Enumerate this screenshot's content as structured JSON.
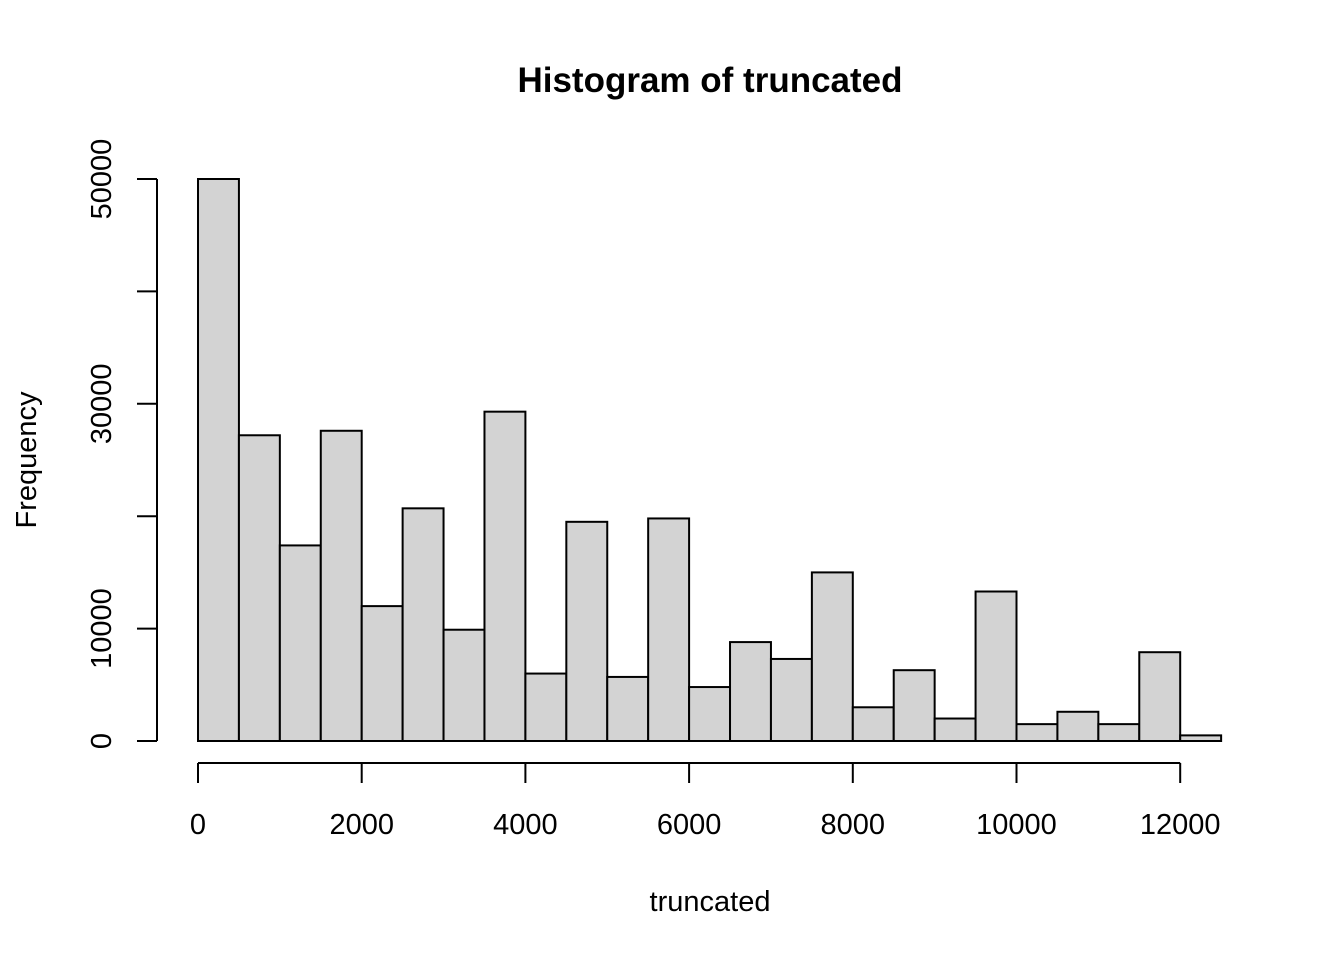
{
  "chart_data": {
    "type": "bar",
    "title": "Histogram of truncated",
    "xlabel": "truncated",
    "ylabel": "Frequency",
    "bin_width": 500,
    "bin_starts": [
      0,
      500,
      1000,
      1500,
      2000,
      2500,
      3000,
      3500,
      4000,
      4500,
      5000,
      5500,
      6000,
      6500,
      7000,
      7500,
      8000,
      8500,
      9000,
      9500,
      10000,
      10500,
      11000,
      11500,
      12000
    ],
    "values": [
      50000,
      27200,
      17400,
      27600,
      12000,
      20700,
      9900,
      29300,
      6000,
      19500,
      5700,
      19800,
      4800,
      8800,
      7300,
      15000,
      3000,
      6300,
      2000,
      13300,
      1500,
      2600,
      1500,
      7900,
      500
    ],
    "xlim": [
      0,
      12500
    ],
    "ylim": [
      0,
      50000
    ],
    "x_ticks": [
      0,
      2000,
      4000,
      6000,
      8000,
      10000,
      12000
    ],
    "x_tick_labels": [
      "0",
      "2000",
      "4000",
      "6000",
      "8000",
      "10000",
      "12000"
    ],
    "y_ticks": [
      0,
      10000,
      20000,
      30000,
      40000,
      50000
    ],
    "y_tick_labels": [
      "0",
      "10000",
      "",
      "30000",
      "",
      "50000"
    ],
    "fill_color": "#d3d3d3",
    "stroke_color": "#000000",
    "grid": false,
    "legend": "none"
  }
}
